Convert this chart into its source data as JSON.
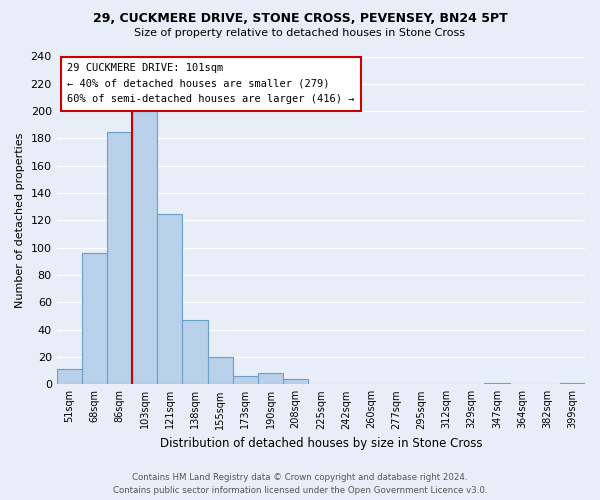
{
  "title1": "29, CUCKMERE DRIVE, STONE CROSS, PEVENSEY, BN24 5PT",
  "title2": "Size of property relative to detached houses in Stone Cross",
  "xlabel": "Distribution of detached houses by size in Stone Cross",
  "ylabel": "Number of detached properties",
  "bar_labels": [
    "51sqm",
    "68sqm",
    "86sqm",
    "103sqm",
    "121sqm",
    "138sqm",
    "155sqm",
    "173sqm",
    "190sqm",
    "208sqm",
    "225sqm",
    "242sqm",
    "260sqm",
    "277sqm",
    "295sqm",
    "312sqm",
    "329sqm",
    "347sqm",
    "364sqm",
    "382sqm",
    "399sqm"
  ],
  "bar_values": [
    11,
    96,
    185,
    200,
    125,
    47,
    20,
    6,
    8,
    4,
    0,
    0,
    0,
    0,
    0,
    0,
    0,
    1,
    0,
    0,
    1
  ],
  "bar_color": "#b8d0ea",
  "bar_edge_color": "#6a9fc8",
  "vline_color": "#cc0000",
  "annotation_title": "29 CUCKMERE DRIVE: 101sqm",
  "annotation_line1": "← 40% of detached houses are smaller (279)",
  "annotation_line2": "60% of semi-detached houses are larger (416) →",
  "annotation_box_edge": "#cc0000",
  "ylim": [
    0,
    240
  ],
  "yticks": [
    0,
    20,
    40,
    60,
    80,
    100,
    120,
    140,
    160,
    180,
    200,
    220,
    240
  ],
  "footer1": "Contains HM Land Registry data © Crown copyright and database right 2024.",
  "footer2": "Contains public sector information licensed under the Open Government Licence v3.0.",
  "background_color": "#e8eef7",
  "plot_bg_color": "#e8eef7"
}
